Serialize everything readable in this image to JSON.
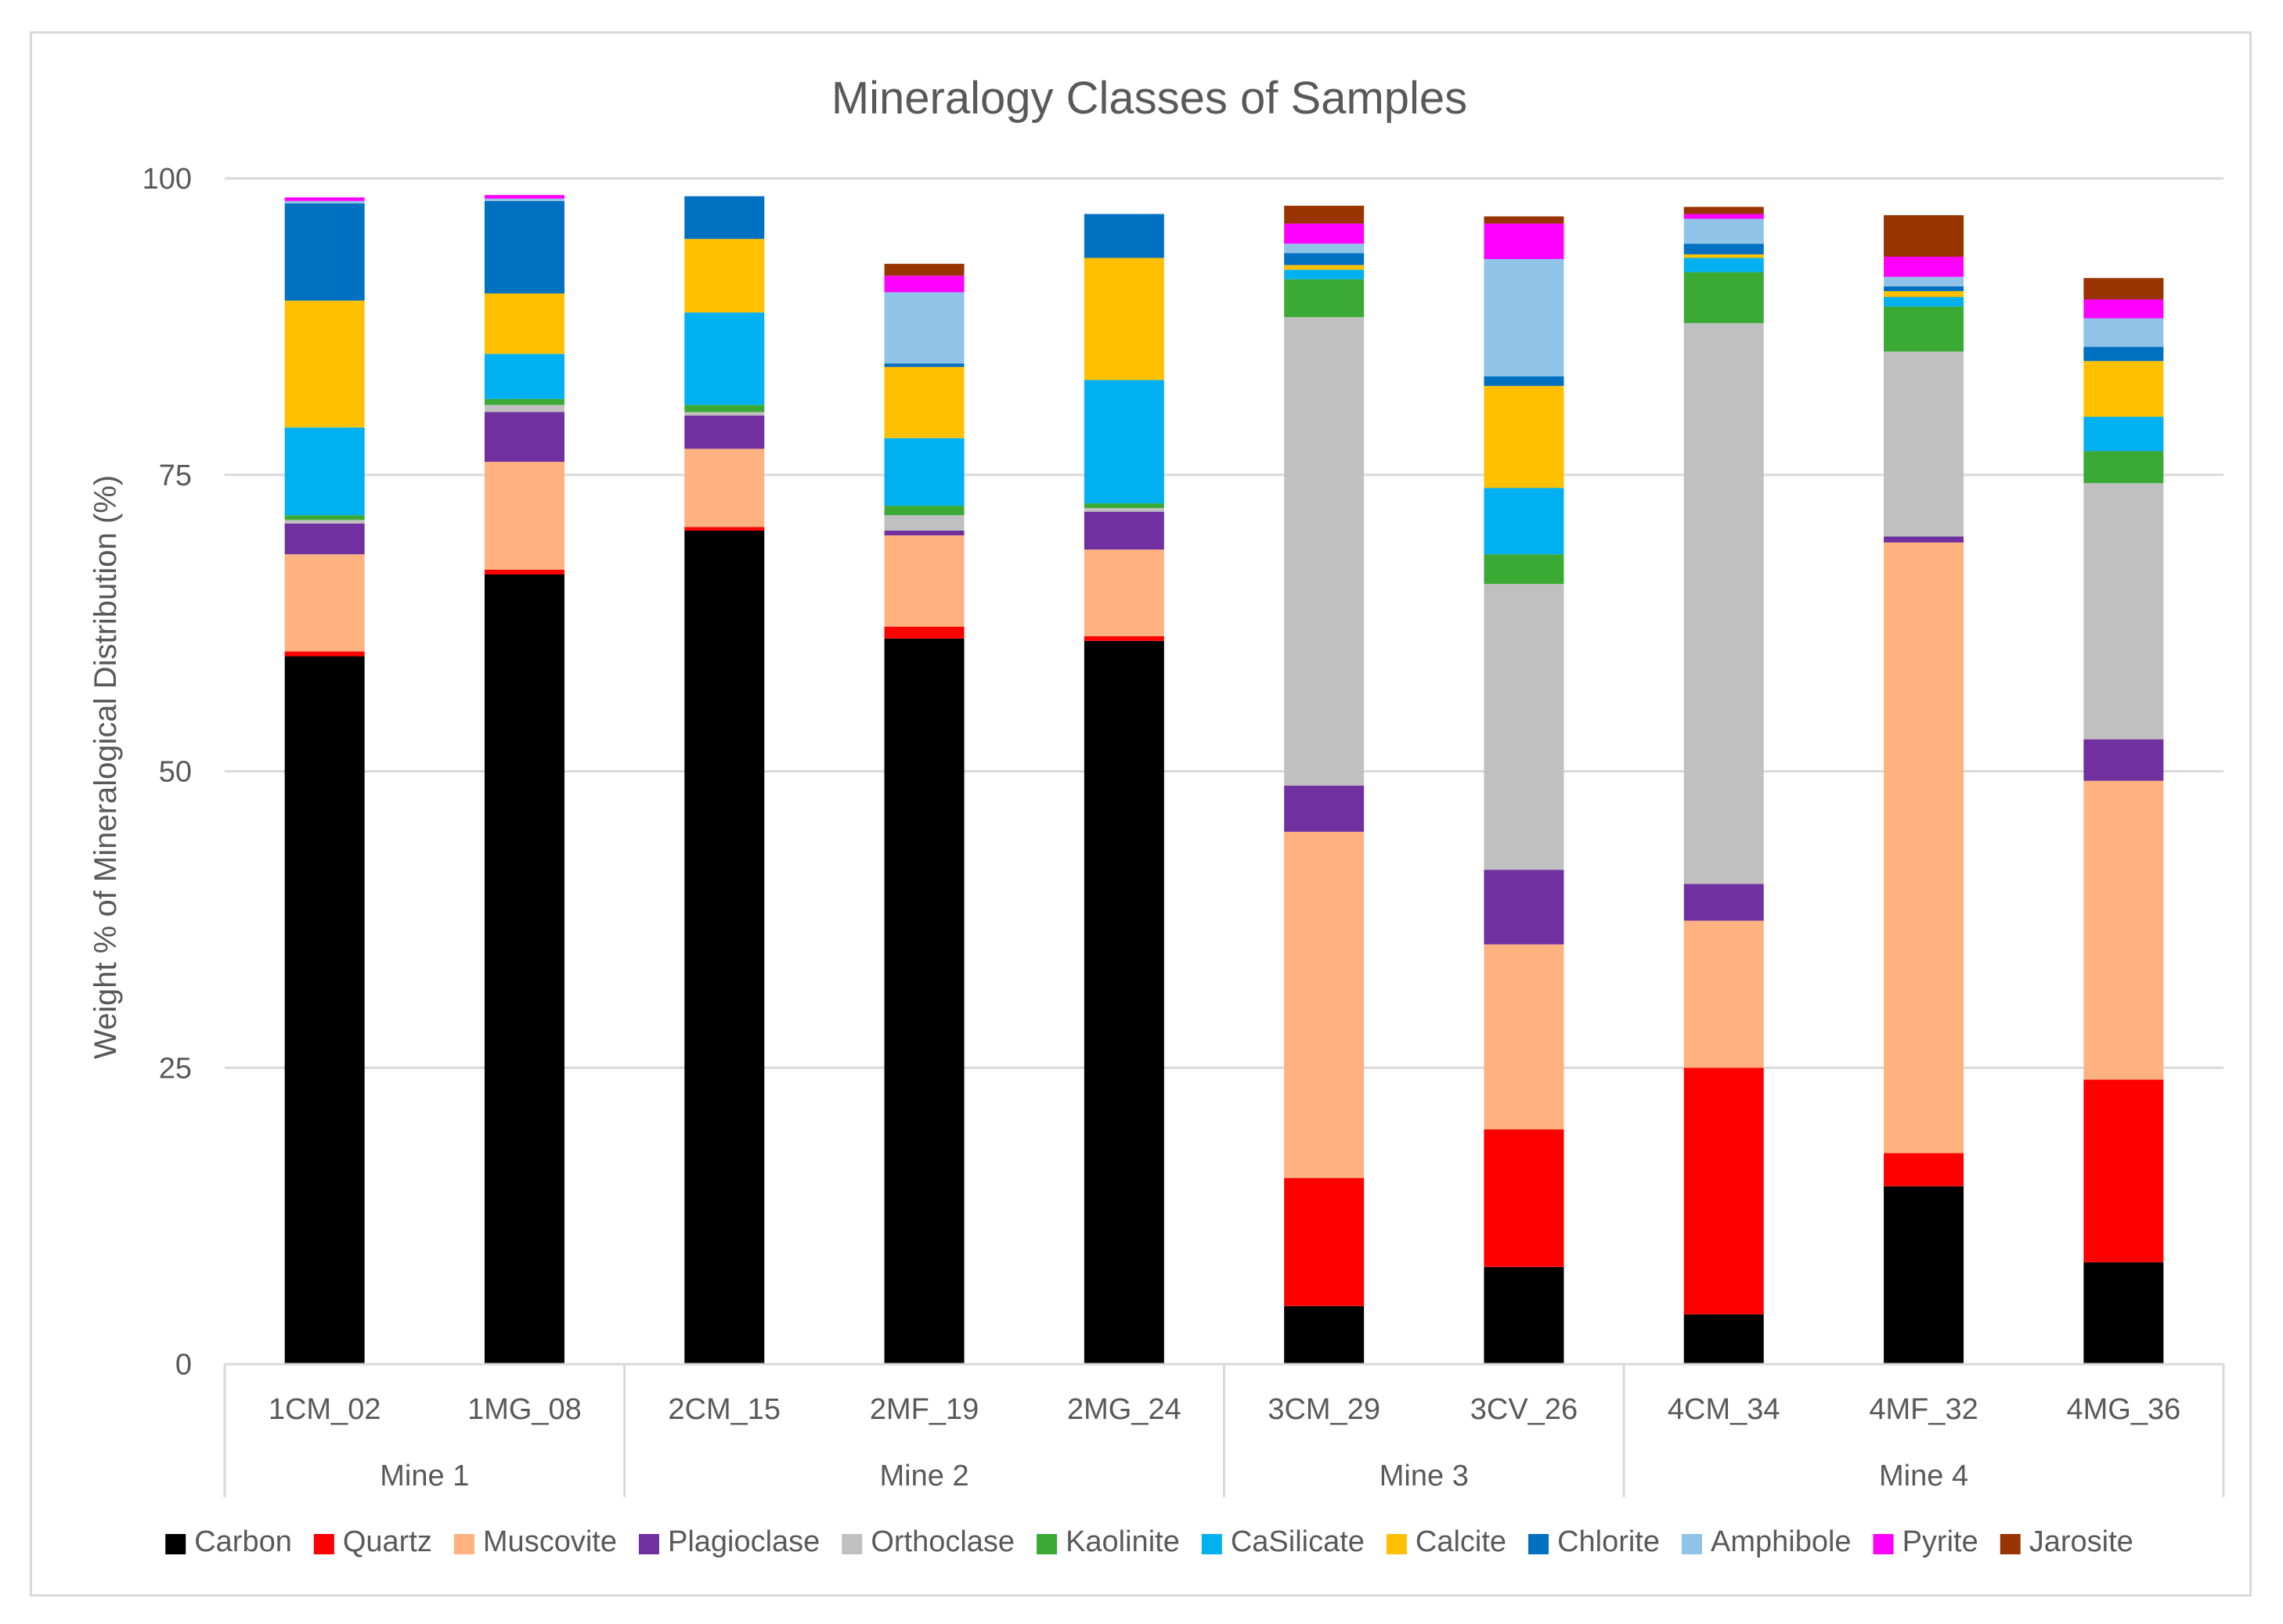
{
  "chart_data": {
    "type": "bar",
    "stacked": true,
    "title": "Mineralogy Classes of Samples",
    "xlabel": "",
    "ylabel": "Weight % of Mineralogical Distribution (%)",
    "ylim": [
      0,
      100
    ],
    "yticks": [
      0,
      25,
      50,
      75,
      100
    ],
    "grid": true,
    "legend_position": "bottom",
    "categories": [
      "1CM_02",
      "1MG_08",
      "2CM_15",
      "2MF_19",
      "2MG_24",
      "3CM_29",
      "3CV_26",
      "4CM_34",
      "4MF_32",
      "4MG_36"
    ],
    "groups": [
      {
        "name": "Mine 1",
        "count": 2
      },
      {
        "name": "Mine 2",
        "count": 3
      },
      {
        "name": "Mine 3",
        "count": 2
      },
      {
        "name": "Mine 4",
        "count": 3
      }
    ],
    "series": [
      {
        "name": "Carbon",
        "color": "#000000",
        "values": [
          59.7,
          66.6,
          70.3,
          61.2,
          61.0,
          4.9,
          8.2,
          4.2,
          15.0,
          8.6
        ]
      },
      {
        "name": "Quartz",
        "color": "#ff0000",
        "values": [
          0.4,
          0.4,
          0.3,
          1.0,
          0.4,
          10.8,
          11.6,
          20.8,
          2.8,
          15.4
        ]
      },
      {
        "name": "Muscovite",
        "color": "#ffb27f",
        "values": [
          8.2,
          9.1,
          6.6,
          7.7,
          7.3,
          29.2,
          15.6,
          12.4,
          51.5,
          25.2
        ]
      },
      {
        "name": "Plagioclase",
        "color": "#7030a0",
        "values": [
          2.6,
          4.2,
          2.8,
          0.4,
          3.2,
          3.9,
          6.3,
          3.1,
          0.5,
          3.5
        ]
      },
      {
        "name": "Orthoclase",
        "color": "#c0c0c0",
        "values": [
          0.3,
          0.6,
          0.3,
          1.3,
          0.3,
          39.5,
          24.1,
          47.3,
          15.6,
          21.6
        ]
      },
      {
        "name": "Kaolinite",
        "color": "#3aaa35",
        "values": [
          0.4,
          0.5,
          0.6,
          0.8,
          0.4,
          3.2,
          2.5,
          4.3,
          3.8,
          2.7
        ]
      },
      {
        "name": "CaSilicate",
        "color": "#00b0f0",
        "values": [
          7.4,
          3.8,
          7.8,
          5.7,
          10.4,
          0.8,
          5.6,
          1.2,
          0.8,
          2.9
        ]
      },
      {
        "name": "Calcite",
        "color": "#ffc000",
        "values": [
          10.7,
          5.1,
          6.2,
          6.0,
          10.3,
          0.4,
          8.6,
          0.3,
          0.5,
          4.7
        ]
      },
      {
        "name": "Chlorite",
        "color": "#0070c0",
        "values": [
          8.2,
          7.8,
          3.6,
          0.3,
          3.7,
          1.0,
          0.8,
          0.9,
          0.4,
          1.2
        ]
      },
      {
        "name": "Amphibole",
        "color": "#8fc4e8",
        "values": [
          0.2,
          0.2,
          0.0,
          6.0,
          0.0,
          0.8,
          9.9,
          2.1,
          0.8,
          2.4
        ]
      },
      {
        "name": "Pyrite",
        "color": "#ff00ff",
        "values": [
          0.3,
          0.3,
          0.0,
          1.4,
          0.0,
          1.7,
          3.0,
          0.4,
          1.7,
          1.6
        ]
      },
      {
        "name": "Jarosite",
        "color": "#993300",
        "values": [
          0.0,
          0.0,
          0.0,
          1.0,
          0.0,
          1.5,
          0.6,
          0.6,
          3.5,
          1.8
        ]
      }
    ]
  }
}
